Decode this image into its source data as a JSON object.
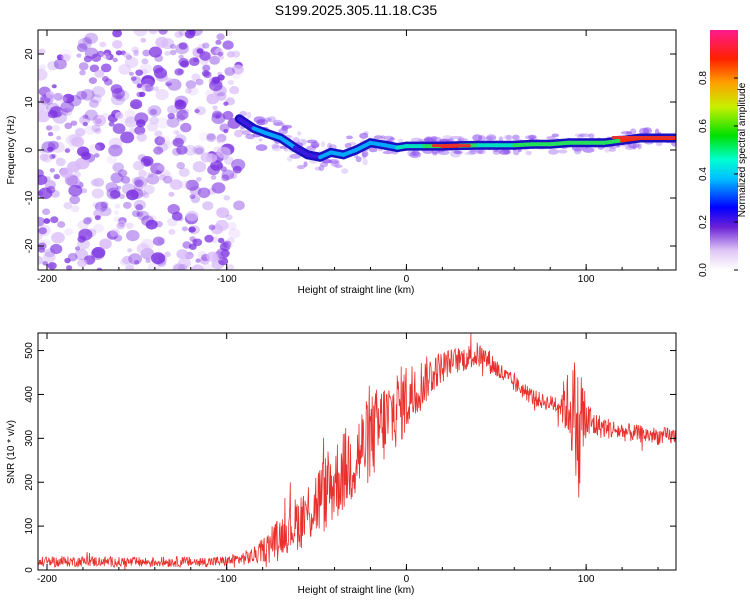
{
  "figure": {
    "title": "S199.2025.305.11.18.C35"
  },
  "colors": {
    "axis": "#000000",
    "snr_line": "#e8302c",
    "scatter_purple": "#7a2fe0",
    "track_red": "#e8302c"
  },
  "chart_data": [
    {
      "name": "spectrogram",
      "type": "heatmap",
      "xlabel": "Height of straight line (km)",
      "ylabel": "Frequency (Hz)",
      "xlim": [
        -205,
        150
      ],
      "ylim": [
        -25,
        25
      ],
      "xticks": [
        -200,
        -100,
        0,
        100
      ],
      "yticks": [
        -20,
        -10,
        0,
        10,
        20
      ],
      "xtick_labels": [
        "-200",
        "-100",
        "0",
        "100"
      ],
      "ytick_labels": [
        "-20",
        "-10",
        "0",
        "10",
        "20"
      ],
      "noise_region": {
        "x_start": -205,
        "x_end": -93,
        "description": ""
      },
      "track": {
        "x": [
          -93,
          -85,
          -78,
          -70,
          -62,
          -55,
          -48,
          -42,
          -35,
          -28,
          -20,
          -12,
          -5,
          0,
          10,
          20,
          30,
          40,
          50,
          60,
          70,
          80,
          90,
          100,
          110,
          120,
          130,
          140,
          150
        ],
        "freq": [
          6.5,
          4.5,
          3.5,
          2.5,
          0.5,
          -1.0,
          -1.5,
          -0.5,
          -1.0,
          0.0,
          1.5,
          1.0,
          0.5,
          0.8,
          0.8,
          0.8,
          0.9,
          1.0,
          1.0,
          1.0,
          1.2,
          1.2,
          1.5,
          1.5,
          1.5,
          2.0,
          2.5,
          2.5,
          2.5
        ],
        "amplitude": [
          0.3,
          0.4,
          0.45,
          0.35,
          0.4,
          0.3,
          0.35,
          0.4,
          0.45,
          0.4,
          0.35,
          0.4,
          0.45,
          0.5,
          0.6,
          0.9,
          0.95,
          0.6,
          0.55,
          0.6,
          0.7,
          0.65,
          0.7,
          0.65,
          0.7,
          0.8,
          0.95,
          0.95,
          0.95
        ]
      }
    },
    {
      "name": "colorbar",
      "type": "colorbar",
      "label": "Normalized spectral amplitude",
      "range": [
        0.0,
        1.0
      ],
      "ticks": [
        0.0,
        0.2,
        0.4,
        0.6,
        0.8
      ],
      "tick_labels": [
        "0.0",
        "0.2",
        "0.4",
        "0.6",
        "0.8"
      ]
    },
    {
      "name": "snr",
      "type": "line",
      "xlabel": "Height of straight line (km)",
      "ylabel": "SNR (10 * v/v)",
      "xlim": [
        -205,
        150
      ],
      "ylim": [
        0,
        540
      ],
      "xticks": [
        -200,
        -100,
        0,
        100
      ],
      "yticks": [
        0,
        100,
        200,
        300,
        400,
        500
      ],
      "xtick_labels": [
        "-200",
        "-100",
        "0",
        "100"
      ],
      "ytick_labels": [
        "0",
        "100",
        "200",
        "300",
        "400",
        "500"
      ],
      "series": [
        {
          "name": "SNR",
          "x": [
            -205,
            -190,
            -175,
            -160,
            -145,
            -130,
            -115,
            -100,
            -93,
            -85,
            -80,
            -75,
            -70,
            -65,
            -60,
            -55,
            -50,
            -45,
            -40,
            -35,
            -30,
            -25,
            -20,
            -15,
            -10,
            -5,
            0,
            5,
            10,
            15,
            20,
            25,
            30,
            35,
            40,
            45,
            50,
            55,
            60,
            65,
            70,
            75,
            80,
            85,
            90,
            95,
            96,
            97,
            100,
            105,
            110,
            120,
            130,
            140,
            150
          ],
          "baseline": [
            18,
            19,
            20,
            18,
            18,
            19,
            18,
            20,
            25,
            32,
            45,
            62,
            80,
            95,
            110,
            130,
            155,
            175,
            200,
            225,
            250,
            275,
            300,
            325,
            345,
            370,
            390,
            410,
            430,
            450,
            465,
            475,
            480,
            485,
            490,
            480,
            460,
            440,
            425,
            410,
            395,
            385,
            380,
            380,
            375,
            350,
            250,
            350,
            340,
            330,
            325,
            315,
            310,
            305,
            305
          ],
          "spread": [
            12,
            12,
            12,
            12,
            12,
            12,
            12,
            12,
            14,
            20,
            28,
            35,
            45,
            55,
            65,
            75,
            85,
            90,
            95,
            95,
            100,
            100,
            100,
            100,
            95,
            90,
            85,
            70,
            55,
            45,
            35,
            30,
            30,
            30,
            30,
            28,
            25,
            22,
            20,
            20,
            20,
            18,
            18,
            30,
            80,
            150,
            150,
            150,
            60,
            30,
            25,
            22,
            20,
            20,
            20
          ]
        }
      ]
    }
  ]
}
